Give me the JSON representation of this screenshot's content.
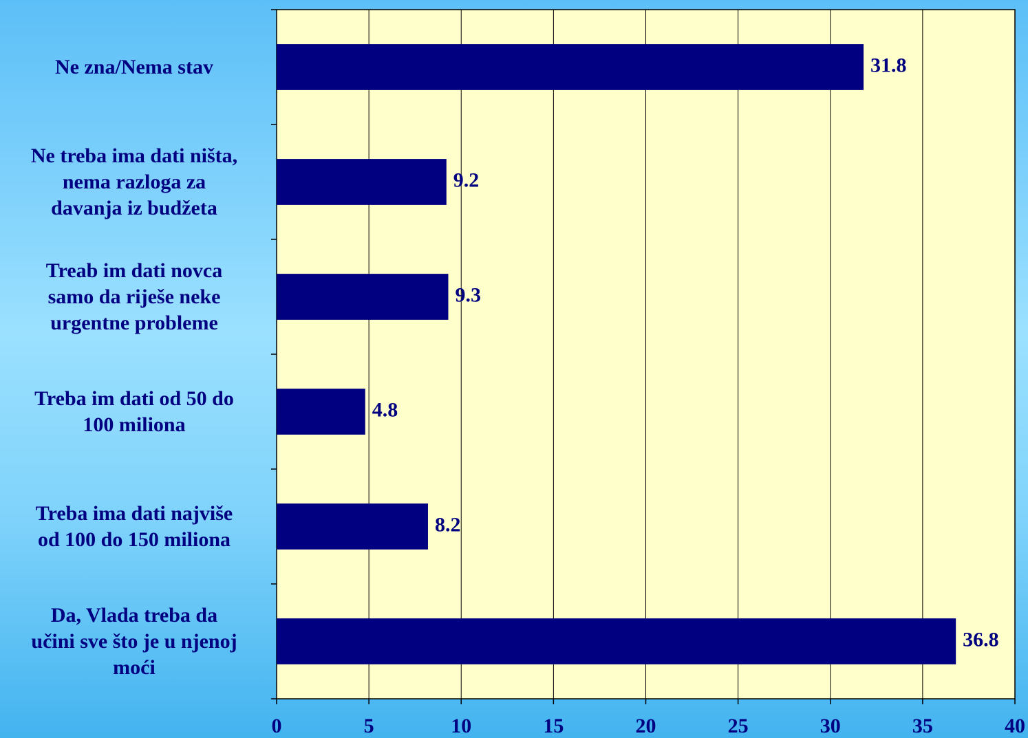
{
  "chart_data": {
    "type": "bar",
    "orientation": "horizontal",
    "categories": [
      "Ne zna/Nema stav",
      "Ne treba ima dati ništa,\nnema razloga za\ndavanja iz budžeta",
      "Treab im dati novca\nsamo da riješe neke\nurgentne probleme",
      "Treba im dati od 50 do\n100 miliona",
      "Treba ima dati najviše\nod 100 do 150 miliona",
      "Da, Vlada treba da\nučini sve što je u njenoj\nmoći"
    ],
    "values": [
      31.8,
      9.2,
      9.3,
      4.8,
      8.2,
      36.8
    ],
    "color": "#000080",
    "xlim": [
      0,
      40
    ],
    "xticks": [
      0,
      5,
      10,
      15,
      20,
      25,
      30,
      35,
      40
    ],
    "grid": true
  }
}
